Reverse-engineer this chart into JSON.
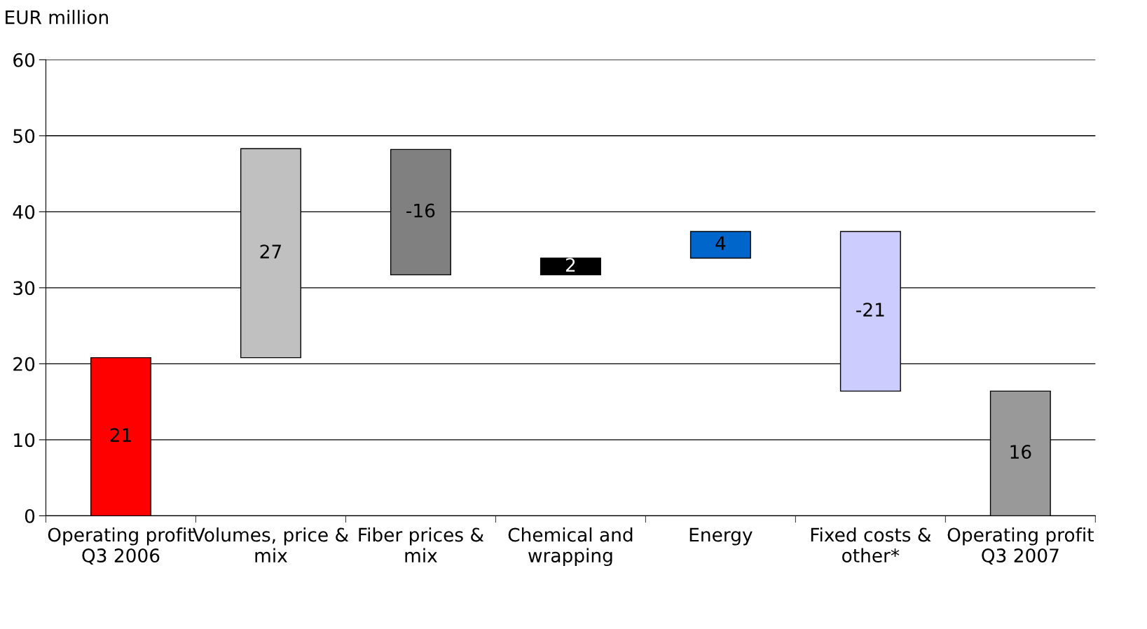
{
  "chart_data": {
    "type": "bar",
    "ylabel": "EUR million",
    "categories": [
      "Operating profit Q3 2006",
      "Volumes, price & mix",
      "Fiber prices & mix",
      "Chemical and wrapping",
      "Energy",
      "Fixed costs & other*",
      "Operating profit Q3 2007"
    ],
    "base": [
      0,
      20.8,
      48.2,
      31.7,
      33.9,
      37.4,
      0
    ],
    "values": [
      20.8,
      27.5,
      -16.5,
      2.2,
      3.5,
      -21,
      16.4
    ],
    "value_labels": [
      "21",
      "27",
      "-16",
      "2",
      "4",
      "-21",
      "16"
    ],
    "colors": [
      "#ff0000",
      "#c0c0c0",
      "#808080",
      "#000000",
      "#0066cc",
      "#ccccff",
      "#999999"
    ],
    "ylim": [
      0,
      60
    ],
    "yticks": [
      0,
      10,
      20,
      30,
      40,
      50,
      60
    ],
    "grid": "y"
  }
}
